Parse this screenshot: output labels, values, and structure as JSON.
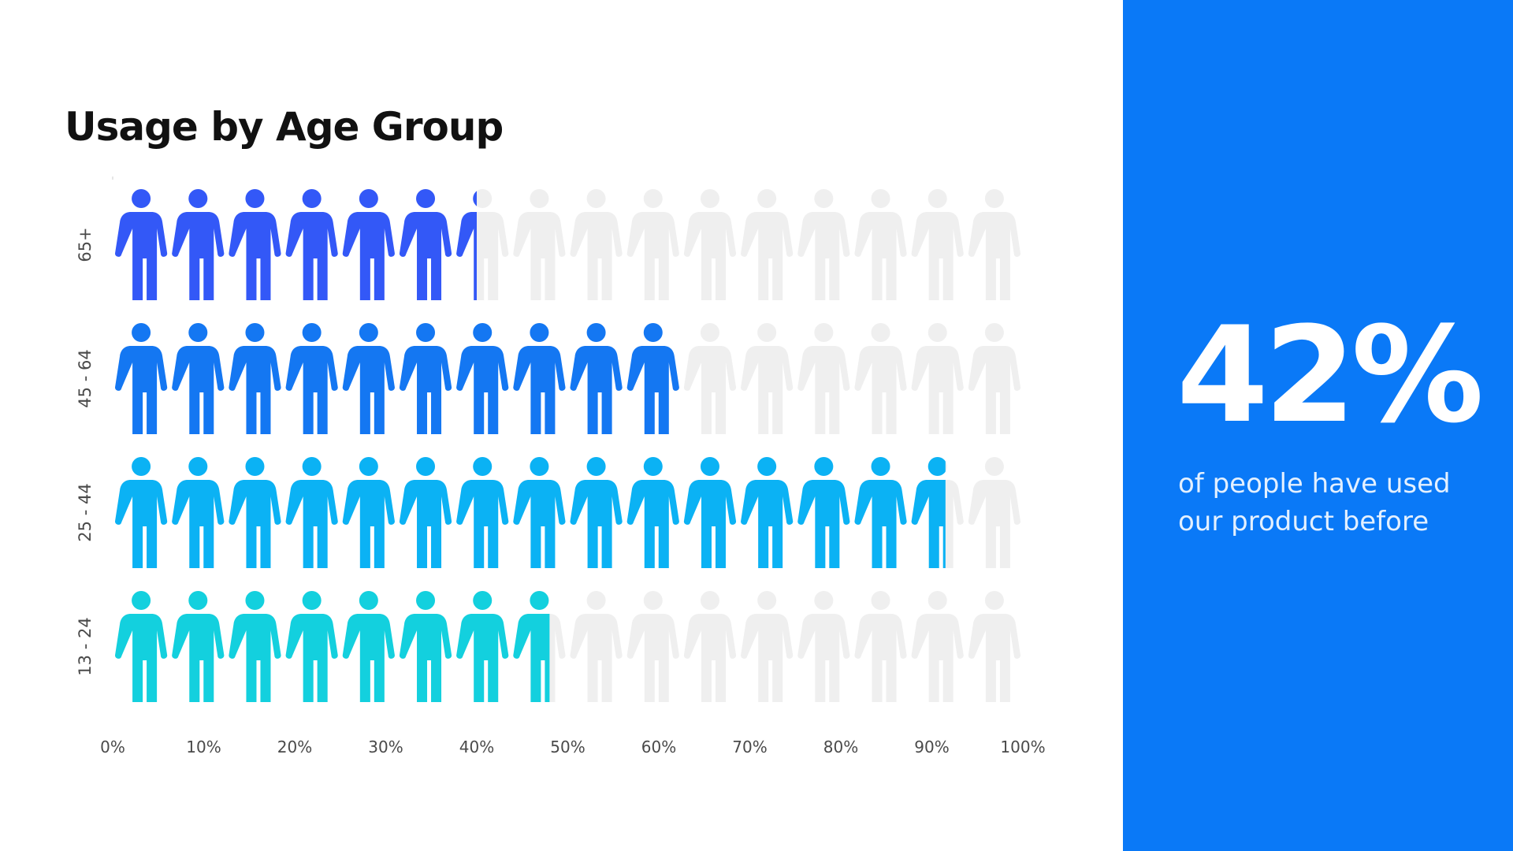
{
  "chart_data": {
    "type": "bar",
    "orientation": "horizontal",
    "style": "pictograph",
    "title": "Usage by Age Group",
    "categories": [
      "65+",
      "45 - 64",
      "25 - 44",
      "13 - 24"
    ],
    "values": [
      40,
      62.5,
      91.5,
      48
    ],
    "icons_per_row": 16,
    "icon": "person-icon",
    "xlim": [
      0,
      100
    ],
    "x_ticks": [
      "0%",
      "10%",
      "20%",
      "30%",
      "40%",
      "50%",
      "60%",
      "70%",
      "80%",
      "90%",
      "100%"
    ],
    "colors": [
      "#3358f7",
      "#1477f2",
      "#0bb2f4",
      "#13d0de"
    ],
    "empty_color": "#efefef",
    "grid": false,
    "legend": "none"
  },
  "stat_panel": {
    "value": "42%",
    "caption": "of people have used our product before",
    "background": "#0a79f7"
  }
}
